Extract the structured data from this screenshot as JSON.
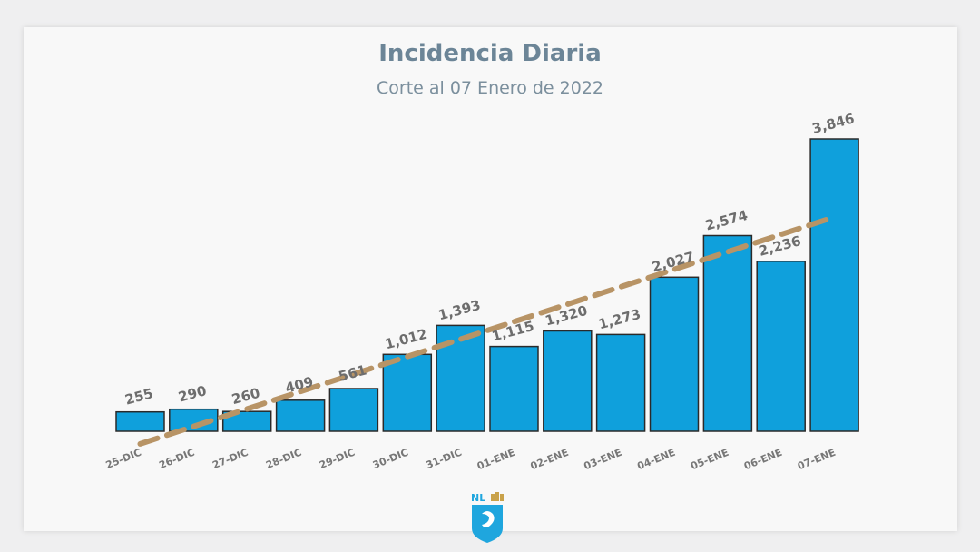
{
  "header": {
    "title": "Incidencia Diaria",
    "subtitle": "Corte al 07 Enero de 2022"
  },
  "logo": {
    "text": "NL"
  },
  "colors": {
    "bar": "#0fa0dc",
    "bar_stroke": "#2a2a2a",
    "trend": "#b89466",
    "label": "#6d6d6d",
    "title": "#6c8597"
  },
  "chart_data": {
    "type": "bar",
    "title": "Incidencia Diaria",
    "subtitle": "Corte al 07 Enero de 2022",
    "categories": [
      "25-DIC",
      "26-DIC",
      "27-DIC",
      "28-DIC",
      "29-DIC",
      "30-DIC",
      "31-DIC",
      "01-ENE",
      "02-ENE",
      "03-ENE",
      "04-ENE",
      "05-ENE",
      "06-ENE",
      "07-ENE"
    ],
    "values": [
      255,
      290,
      260,
      409,
      561,
      1012,
      1393,
      1115,
      1320,
      1273,
      2027,
      2574,
      2236,
      3846
    ],
    "value_labels": [
      "255",
      "290",
      "260",
      "409",
      "561",
      "1,012",
      "1,393",
      "1,115",
      "1,320",
      "1,273",
      "2,027",
      "2,574",
      "2,236",
      "3,846"
    ],
    "trendline": {
      "type": "linear",
      "style": "dashed"
    },
    "ylim": [
      0,
      3846
    ],
    "xlabel": "",
    "ylabel": "",
    "grid": false,
    "legend": "none"
  }
}
